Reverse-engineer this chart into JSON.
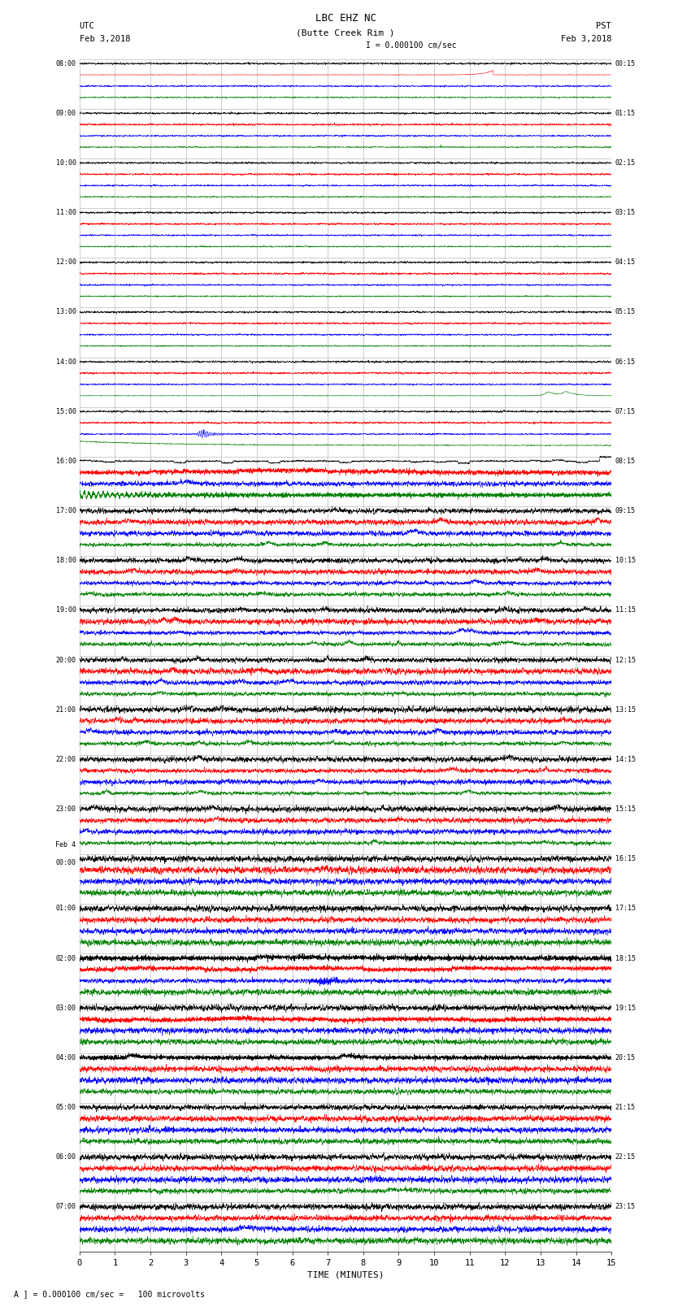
{
  "title_line1": "LBC EHZ NC",
  "title_line2": "(Butte Creek Rim )",
  "scale_text": "I = 0.000100 cm/sec",
  "footer_text": "A ] = 0.000100 cm/sec =   100 microvolts",
  "utc_label": "UTC",
  "utc_date": "Feb 3,2018",
  "pst_label": "PST",
  "pst_date": "Feb 3,2018",
  "xlabel": "TIME (MINUTES)",
  "left_times_utc": [
    "08:00",
    "09:00",
    "10:00",
    "11:00",
    "12:00",
    "13:00",
    "14:00",
    "15:00",
    "16:00",
    "17:00",
    "18:00",
    "19:00",
    "20:00",
    "21:00",
    "22:00",
    "23:00",
    "Feb 4\n00:00",
    "01:00",
    "02:00",
    "03:00",
    "04:00",
    "05:00",
    "06:00",
    "07:00"
  ],
  "right_times_pst": [
    "00:15",
    "01:15",
    "02:15",
    "03:15",
    "04:15",
    "05:15",
    "06:15",
    "07:15",
    "08:15",
    "09:15",
    "10:15",
    "11:15",
    "12:15",
    "13:15",
    "14:15",
    "15:15",
    "16:15",
    "17:15",
    "18:15",
    "19:15",
    "20:15",
    "21:15",
    "22:15",
    "23:15"
  ],
  "num_rows": 24,
  "traces_per_row": 4,
  "colors": [
    "black",
    "red",
    "blue",
    "green"
  ],
  "bg_color": "white",
  "xlim": [
    0,
    15
  ],
  "xticks": [
    0,
    1,
    2,
    3,
    4,
    5,
    6,
    7,
    8,
    9,
    10,
    11,
    12,
    13,
    14,
    15
  ],
  "figsize": [
    8.5,
    16.13
  ],
  "dpi": 100
}
